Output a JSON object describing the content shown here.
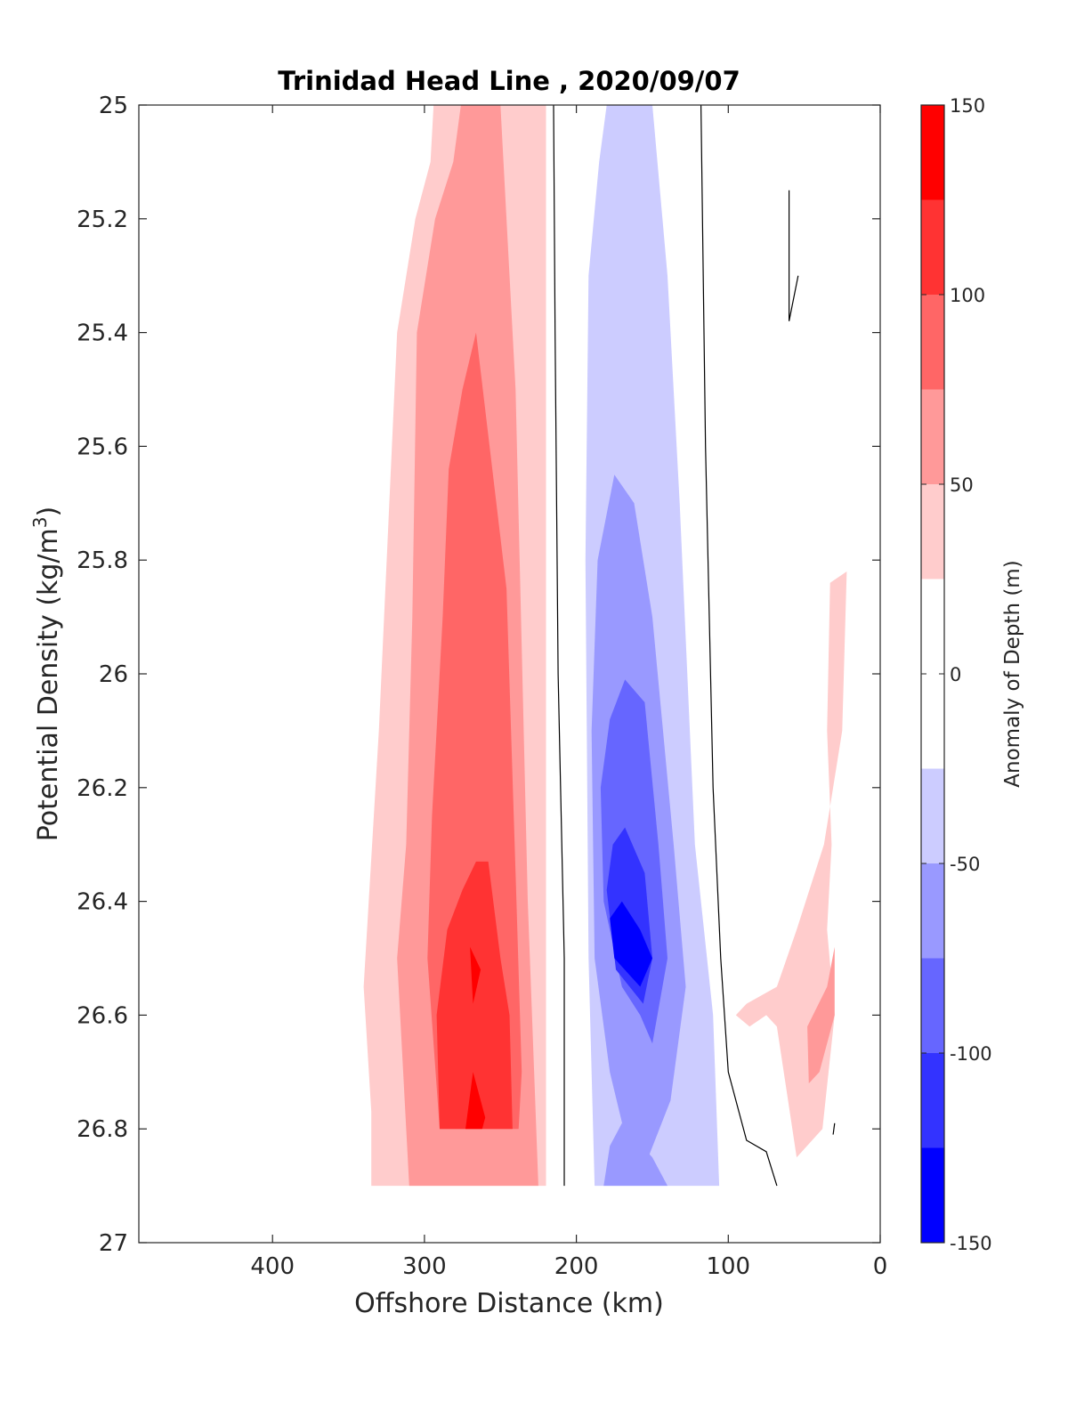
{
  "chart_data": {
    "type": "filled-contour",
    "title": "Trinidad Head Line , 2020/09/07",
    "xlabel": "Offshore Distance (km)",
    "ylabel": "Potential Density (kg/m",
    "ylabel_sup": "3",
    "ylabel_end": ")",
    "xlim": [
      488,
      0
    ],
    "ylim": [
      25,
      27
    ],
    "x_ticks": [
      400,
      300,
      200,
      100,
      0
    ],
    "x_tick_labels": [
      "400",
      "300",
      "200",
      "100",
      "0"
    ],
    "y_ticks": [
      25,
      25.2,
      25.4,
      25.6,
      25.8,
      26,
      26.2,
      26.4,
      26.6,
      26.8,
      27
    ],
    "y_tick_labels": [
      "25",
      "25.2",
      "25.4",
      "25.6",
      "25.8",
      "26",
      "26.2",
      "26.4",
      "26.6",
      "26.8",
      "27"
    ],
    "colorbar": {
      "label": "Anomaly of Depth (m)",
      "range": [
        -150,
        150
      ],
      "tick_values": [
        150,
        100,
        50,
        0,
        -50,
        -100,
        -150
      ],
      "tick_labels": [
        "150",
        "100",
        "50",
        "0",
        "-50",
        "-100",
        "-150"
      ],
      "levels": [
        -150,
        -125,
        -100,
        -75,
        -50,
        -25,
        25,
        50,
        75,
        100,
        125,
        150
      ],
      "colors": [
        "#0000ff",
        "#3333ff",
        "#6666ff",
        "#9999ff",
        "#ccccff",
        "#ffffff",
        "#ffcccc",
        "#ff9999",
        "#ff6666",
        "#ff3333",
        "#ff0000"
      ]
    },
    "grid": false,
    "regions": [
      {
        "level": 25,
        "color": "#ffcccc",
        "points": [
          [
            294,
            25
          ],
          [
            220,
            25
          ],
          [
            220,
            26.9
          ],
          [
            335,
            26.9
          ],
          [
            335,
            26.77
          ],
          [
            340,
            26.55
          ],
          [
            330,
            26.1
          ],
          [
            318,
            25.4
          ],
          [
            306,
            25.2
          ],
          [
            296,
            25.1
          ]
        ]
      },
      {
        "level": 50,
        "color": "#ff9999",
        "points": [
          [
            276,
            25
          ],
          [
            250,
            25
          ],
          [
            240,
            25.5
          ],
          [
            232,
            26.4
          ],
          [
            225,
            26.9
          ],
          [
            310,
            26.9
          ],
          [
            318,
            26.5
          ],
          [
            312,
            26.3
          ],
          [
            308,
            25.9
          ],
          [
            305,
            25.4
          ],
          [
            293,
            25.2
          ],
          [
            281,
            25.1
          ]
        ]
      },
      {
        "level": 75,
        "color": "#ff6666",
        "points": [
          [
            284,
            25.64
          ],
          [
            275,
            25.5
          ],
          [
            266,
            25.4
          ],
          [
            246,
            25.85
          ],
          [
            240,
            26.35
          ],
          [
            236,
            26.7
          ],
          [
            238,
            26.8
          ],
          [
            290,
            26.8
          ],
          [
            298,
            26.5
          ],
          [
            295,
            26.25
          ],
          [
            288,
            25.9
          ]
        ]
      },
      {
        "level": 100,
        "color": "#ff3333",
        "points": [
          [
            266,
            26.33
          ],
          [
            258,
            26.33
          ],
          [
            250,
            26.5
          ],
          [
            244,
            26.6
          ],
          [
            242,
            26.8
          ],
          [
            290,
            26.8
          ],
          [
            292,
            26.6
          ],
          [
            285,
            26.45
          ],
          [
            275,
            26.38
          ]
        ]
      },
      {
        "level": 125,
        "color": "#ff0000",
        "points": [
          [
            270,
            26.48
          ],
          [
            263,
            26.52
          ],
          [
            268,
            26.58
          ]
        ]
      },
      {
        "level": 125,
        "color": "#ff0000",
        "points": [
          [
            268,
            26.7
          ],
          [
            260,
            26.78
          ],
          [
            262,
            26.8
          ],
          [
            273,
            26.8
          ]
        ]
      },
      {
        "level": -25,
        "color": "#ccccff",
        "points": [
          [
            180,
            25
          ],
          [
            150,
            25
          ],
          [
            140,
            25.3
          ],
          [
            132,
            25.7
          ],
          [
            122,
            26.3
          ],
          [
            110,
            26.6
          ],
          [
            106,
            26.9
          ],
          [
            188,
            26.9
          ],
          [
            192,
            26.5
          ],
          [
            194,
            25.8
          ],
          [
            192,
            25.3
          ],
          [
            185,
            25.1
          ]
        ]
      },
      {
        "level": -50,
        "color": "#9999ff",
        "points": [
          [
            175,
            25.65
          ],
          [
            162,
            25.7
          ],
          [
            150,
            25.9
          ],
          [
            136,
            26.3
          ],
          [
            128,
            26.55
          ],
          [
            138,
            26.75
          ],
          [
            160,
            26.9
          ],
          [
            178,
            26.7
          ],
          [
            188,
            26.5
          ],
          [
            190,
            26.1
          ],
          [
            186,
            25.8
          ]
        ]
      },
      {
        "level": -50,
        "color": "#9999ff",
        "points": [
          [
            170,
            26.79
          ],
          [
            150,
            26.85
          ],
          [
            140,
            26.9
          ],
          [
            182,
            26.9
          ],
          [
            178,
            26.83
          ]
        ]
      },
      {
        "level": -75,
        "color": "#6666ff",
        "points": [
          [
            168,
            26.01
          ],
          [
            155,
            26.05
          ],
          [
            146,
            26.3
          ],
          [
            140,
            26.5
          ],
          [
            150,
            26.65
          ],
          [
            158,
            26.6
          ],
          [
            170,
            26.55
          ],
          [
            182,
            26.4
          ],
          [
            184,
            26.2
          ],
          [
            178,
            26.08
          ]
        ]
      },
      {
        "level": -100,
        "color": "#3333ff",
        "points": [
          [
            168,
            26.27
          ],
          [
            155,
            26.35
          ],
          [
            150,
            26.5
          ],
          [
            156,
            26.58
          ],
          [
            174,
            26.52
          ],
          [
            180,
            26.38
          ],
          [
            176,
            26.3
          ]
        ]
      },
      {
        "level": -125,
        "color": "#0000ff",
        "points": [
          [
            170,
            26.4
          ],
          [
            158,
            26.45
          ],
          [
            150,
            26.5
          ],
          [
            158,
            26.55
          ],
          [
            175,
            26.5
          ],
          [
            178,
            26.43
          ]
        ]
      },
      {
        "level": 25,
        "color": "#ffcccc",
        "points": [
          [
            22,
            25.82
          ],
          [
            33,
            25.84
          ],
          [
            35,
            26.1
          ],
          [
            32,
            26.3
          ],
          [
            35,
            26.45
          ],
          [
            30,
            26.6
          ],
          [
            38,
            26.8
          ],
          [
            55,
            26.85
          ],
          [
            68,
            26.62
          ],
          [
            75,
            26.6
          ],
          [
            86,
            26.62
          ],
          [
            95,
            26.6
          ],
          [
            88,
            26.58
          ],
          [
            68,
            26.55
          ],
          [
            55,
            26.45
          ],
          [
            37,
            26.3
          ],
          [
            31,
            26.2
          ],
          [
            25,
            26.1
          ]
        ]
      },
      {
        "level": 50,
        "color": "#ff9999",
        "points": [
          [
            30,
            26.48
          ],
          [
            35,
            26.55
          ],
          [
            48,
            26.62
          ],
          [
            47,
            26.72
          ],
          [
            40,
            26.7
          ],
          [
            30,
            26.6
          ]
        ]
      }
    ],
    "zero_contours": [
      [
        [
          215,
          25
        ],
        [
          214,
          25.4
        ],
        [
          212,
          26
        ],
        [
          208,
          26.5
        ],
        [
          208,
          26.9
        ]
      ],
      [
        [
          118,
          25
        ],
        [
          115,
          25.6
        ],
        [
          110,
          26.2
        ],
        [
          105,
          26.5
        ],
        [
          100,
          26.7
        ],
        [
          88,
          26.82
        ],
        [
          75,
          26.84
        ],
        [
          68,
          26.9
        ]
      ],
      [
        [
          60,
          25.15
        ],
        [
          60,
          25.38
        ],
        [
          54,
          25.3
        ]
      ],
      [
        [
          30,
          26.79
        ],
        [
          31,
          26.81
        ]
      ]
    ]
  }
}
